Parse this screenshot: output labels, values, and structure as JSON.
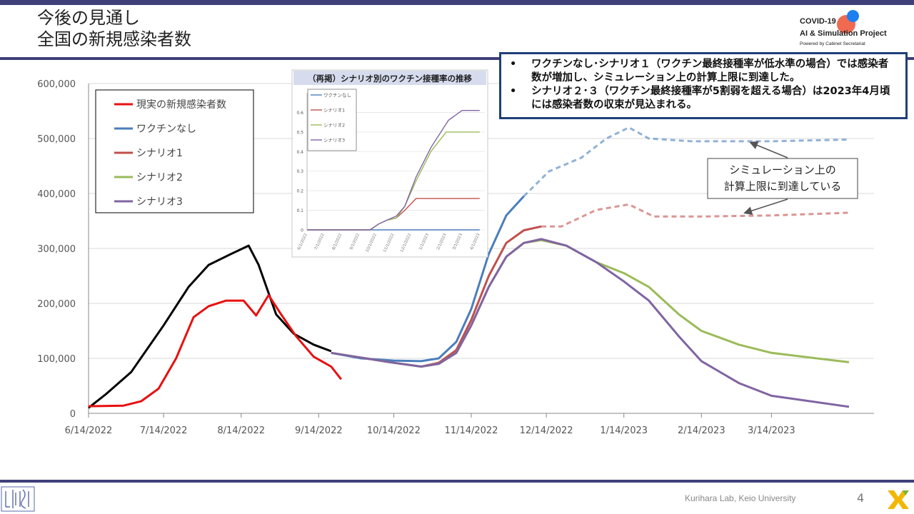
{
  "title": {
    "line1": "今後の見通し",
    "line2": "全国の新規感染者数"
  },
  "logo": {
    "line1": "COVID-19",
    "line2": "AI & Simulation Project",
    "line3": "Powered by Cabinet Secretariat"
  },
  "callout": {
    "bullet": "•",
    "item1": "ワクチンなし･シナリオ１（ワクチン最終接種率が低水準の場合）では感染者数が増加し、シミュレーション上の計算上限に到達した。",
    "item2": "シナリオ２･３（ワクチン最終接種率が5割弱を超える場合）は2023年4月頃には感染者数の収束が見込まれる。"
  },
  "annotation": {
    "line1": "シミュレーション上の",
    "line2": "計算上限に到達している"
  },
  "footer": {
    "lab": "Kurihara Lab, Keio University",
    "page": "4"
  },
  "colors": {
    "accent": "#3f3f7a",
    "actual": "#e81010",
    "none": "#4a7ebb",
    "s1": "#c0504d",
    "s2": "#9bbb59",
    "s3": "#8064a2",
    "fit": "#000000"
  },
  "chart_data": [
    {
      "type": "line",
      "title": "",
      "xlabel": "",
      "ylabel": "",
      "ylim": [
        0,
        600000
      ],
      "yticks": [
        "0",
        "100,000",
        "200,000",
        "300,000",
        "400,000",
        "500,000",
        "600,000"
      ],
      "xticks": [
        "6/14/2022",
        "7/14/2022",
        "8/14/2022",
        "9/14/2022",
        "10/14/2022",
        "11/14/2022",
        "12/14/2022",
        "1/14/2023",
        "2/14/2023",
        "3/14/2023"
      ],
      "legend_position": "top-left",
      "grid": true,
      "series": [
        {
          "name": "現実の新規感染者数",
          "color": "#e81010",
          "x": [
            "2022-06-14",
            "2022-06-28",
            "2022-07-05",
            "2022-07-12",
            "2022-07-19",
            "2022-07-26",
            "2022-08-01",
            "2022-08-08",
            "2022-08-15",
            "2022-08-20",
            "2022-08-25",
            "2022-08-30",
            "2022-09-05",
            "2022-09-12",
            "2022-09-19",
            "2022-09-23"
          ],
          "y": [
            13000,
            14000,
            22000,
            45000,
            100000,
            175000,
            195000,
            205000,
            205000,
            178000,
            215000,
            180000,
            140000,
            103000,
            85000,
            62000
          ]
        },
        {
          "name": "ワクチンなし",
          "color": "#4a7ebb",
          "x": [
            "2022-09-19",
            "2022-10-01",
            "2022-10-14",
            "2022-10-25",
            "2022-11-01",
            "2022-11-08",
            "2022-11-14",
            "2022-11-21",
            "2022-11-28",
            "2022-12-05",
            "2022-12-15",
            "2022-12-28",
            "2023-01-07",
            "2023-01-16",
            "2023-01-24",
            "2023-02-10",
            "2023-03-14",
            "2023-04-14"
          ],
          "y": [
            110000,
            100000,
            96000,
            95000,
            100000,
            130000,
            190000,
            290000,
            360000,
            395000,
            440000,
            465000,
            500000,
            520000,
            500000,
            495000,
            495000,
            498000
          ],
          "style_after": "2022-12-05"
        },
        {
          "name": "シナリオ1",
          "color": "#c0504d",
          "x": [
            "2022-09-19",
            "2022-10-14",
            "2022-10-25",
            "2022-11-01",
            "2022-11-08",
            "2022-11-14",
            "2022-11-21",
            "2022-11-28",
            "2022-12-05",
            "2022-12-12",
            "2022-12-20",
            "2023-01-03",
            "2023-01-16",
            "2023-01-26",
            "2023-02-14",
            "2023-03-14",
            "2023-04-14"
          ],
          "y": [
            110000,
            92000,
            85000,
            92000,
            115000,
            170000,
            250000,
            310000,
            333000,
            340000,
            340000,
            370000,
            380000,
            358000,
            358000,
            360000,
            365000
          ],
          "style_after": "2022-12-12"
        },
        {
          "name": "シナリオ2",
          "color": "#9bbb59",
          "x": [
            "2022-09-19",
            "2022-10-14",
            "2022-10-25",
            "2022-11-01",
            "2022-11-08",
            "2022-11-14",
            "2022-11-21",
            "2022-11-28",
            "2022-12-05",
            "2022-12-12",
            "2022-12-22",
            "2023-01-03",
            "2023-01-14",
            "2023-01-24",
            "2023-02-05",
            "2023-02-14",
            "2023-03-01",
            "2023-03-14",
            "2023-04-14"
          ],
          "y": [
            110000,
            92000,
            85000,
            90000,
            110000,
            160000,
            230000,
            285000,
            310000,
            315000,
            305000,
            275000,
            255000,
            230000,
            180000,
            150000,
            125000,
            110000,
            93000
          ]
        },
        {
          "name": "シナリオ3",
          "color": "#8064a2",
          "x": [
            "2022-09-19",
            "2022-10-14",
            "2022-10-25",
            "2022-11-01",
            "2022-11-08",
            "2022-11-14",
            "2022-11-21",
            "2022-11-28",
            "2022-12-05",
            "2022-12-12",
            "2022-12-22",
            "2023-01-03",
            "2023-01-14",
            "2023-01-24",
            "2023-02-05",
            "2023-02-14",
            "2023-03-01",
            "2023-03-14",
            "2023-04-14"
          ],
          "y": [
            110000,
            92000,
            85000,
            90000,
            110000,
            160000,
            230000,
            285000,
            310000,
            317000,
            305000,
            275000,
            240000,
            205000,
            140000,
            95000,
            55000,
            32000,
            12000
          ]
        },
        {
          "name": "",
          "color": "#000000",
          "x": [
            "2022-06-14",
            "2022-06-21",
            "2022-07-01",
            "2022-07-14",
            "2022-07-24",
            "2022-08-01",
            "2022-08-10",
            "2022-08-17",
            "2022-08-21",
            "2022-08-28",
            "2022-09-04",
            "2022-09-12",
            "2022-09-19"
          ],
          "y": [
            10000,
            35000,
            75000,
            160000,
            230000,
            270000,
            290000,
            305000,
            270000,
            180000,
            145000,
            125000,
            113000
          ]
        }
      ]
    },
    {
      "type": "line",
      "title": "（再掲）シナリオ別のワクチン接種率の推移",
      "ylim": [
        0,
        0.7
      ],
      "yticks": [
        "0",
        "0.1",
        "0.2",
        "0.3",
        "0.4",
        "0.5",
        "0.6"
      ],
      "xticks": [
        "6/1/2022",
        "7/1/2022",
        "8/1/2022",
        "9/1/2022",
        "10/1/2022",
        "11/1/2022",
        "12/1/2022",
        "1/1/2023",
        "2/1/2023",
        "3/1/2023",
        "4/1/2023"
      ],
      "series": [
        {
          "name": "ワクチンなし",
          "color": "#4a7ebb",
          "x": [
            "2022-06-01",
            "2022-09-15",
            "2022-10-01",
            "2022-11-01",
            "2022-12-01",
            "2023-01-01",
            "2023-02-01",
            "2023-03-01",
            "2023-04-01"
          ],
          "y": [
            0,
            0,
            0,
            0,
            0,
            0,
            0,
            0,
            0
          ]
        },
        {
          "name": "シナリオ1",
          "color": "#c0504d",
          "x": [
            "2022-06-01",
            "2022-09-20",
            "2022-10-05",
            "2022-10-20",
            "2022-11-05",
            "2022-11-20",
            "2022-12-10",
            "2023-01-01",
            "2023-04-01"
          ],
          "y": [
            0,
            0,
            0.03,
            0.05,
            0.06,
            0.1,
            0.16,
            0.16,
            0.16
          ]
        },
        {
          "name": "シナリオ2",
          "color": "#9bbb59",
          "x": [
            "2022-06-01",
            "2022-09-20",
            "2022-10-05",
            "2022-10-20",
            "2022-11-05",
            "2022-11-20",
            "2022-12-10",
            "2023-01-05",
            "2023-02-01",
            "2023-04-01"
          ],
          "y": [
            0,
            0,
            0.03,
            0.05,
            0.06,
            0.12,
            0.25,
            0.4,
            0.5,
            0.5
          ]
        },
        {
          "name": "シナリオ3",
          "color": "#8064a2",
          "x": [
            "2022-06-01",
            "2022-09-20",
            "2022-10-05",
            "2022-10-20",
            "2022-11-05",
            "2022-11-20",
            "2022-12-10",
            "2023-01-05",
            "2023-02-05",
            "2023-03-01",
            "2023-04-01"
          ],
          "y": [
            0,
            0,
            0.03,
            0.05,
            0.07,
            0.12,
            0.27,
            0.42,
            0.56,
            0.61,
            0.61
          ]
        }
      ]
    }
  ]
}
